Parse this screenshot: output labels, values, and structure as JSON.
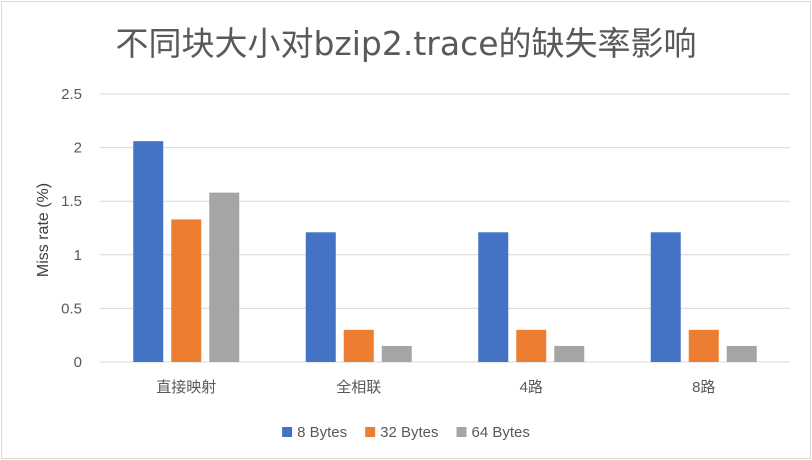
{
  "chart_data": {
    "type": "bar",
    "title": "不同块大小对bzip2.trace的缺失率影响",
    "xlabel": "",
    "ylabel": "Miss rate (%)",
    "ylim": [
      0,
      2.5
    ],
    "yticks": [
      "0",
      "0.5",
      "1",
      "1.5",
      "2",
      "2.5"
    ],
    "categories": [
      "直接映射",
      "全相联",
      "4路",
      "8路"
    ],
    "series": [
      {
        "name": "8 Bytes",
        "color": "#4472C4",
        "values": [
          2.06,
          1.21,
          1.21,
          1.21
        ]
      },
      {
        "name": "32 Bytes",
        "color": "#ED7D31",
        "values": [
          1.33,
          0.3,
          0.3,
          0.3
        ]
      },
      {
        "name": "64 Bytes",
        "color": "#A5A5A5",
        "values": [
          1.58,
          0.15,
          0.15,
          0.15
        ]
      }
    ],
    "grid": true,
    "legend_position": "bottom"
  }
}
